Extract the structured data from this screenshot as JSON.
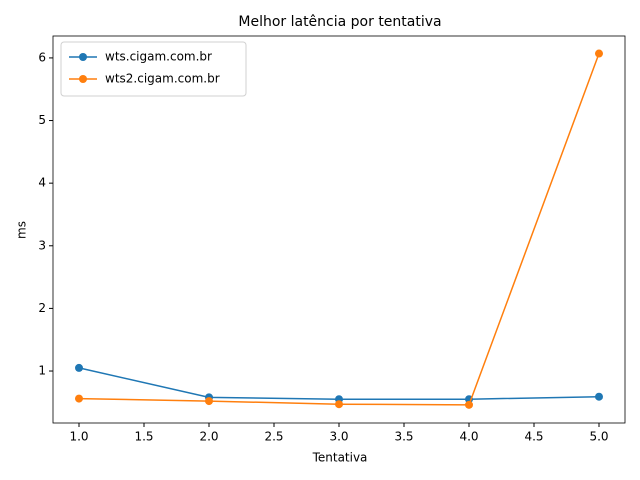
{
  "chart_data": {
    "type": "line",
    "title": "Melhor latência por tentativa",
    "xlabel": "Tentativa",
    "ylabel": "ms",
    "x": [
      1,
      2,
      3,
      4,
      5
    ],
    "series": [
      {
        "name": "wts.cigam.com.br",
        "color": "#1f77b4",
        "values": [
          1.05,
          0.58,
          0.55,
          0.55,
          0.59
        ]
      },
      {
        "name": "wts2.cigam.com.br",
        "color": "#ff7f0e",
        "values": [
          0.56,
          0.52,
          0.47,
          0.46,
          6.07
        ]
      }
    ],
    "xlim": [
      0.8,
      5.2
    ],
    "xticks": [
      {
        "value": 1,
        "label": "1.0"
      },
      {
        "value": 1.5,
        "label": "1.5"
      },
      {
        "value": 2,
        "label": "2.0"
      },
      {
        "value": 2.5,
        "label": "2.5"
      },
      {
        "value": 3,
        "label": "3.0"
      },
      {
        "value": 3.5,
        "label": "3.5"
      },
      {
        "value": 4,
        "label": "4.0"
      },
      {
        "value": 4.5,
        "label": "4.5"
      },
      {
        "value": 5,
        "label": "5.0"
      }
    ],
    "ylim": [
      0.17,
      6.35
    ],
    "yticks": [
      1,
      2,
      3,
      4,
      5,
      6
    ],
    "legend": "upper left"
  }
}
